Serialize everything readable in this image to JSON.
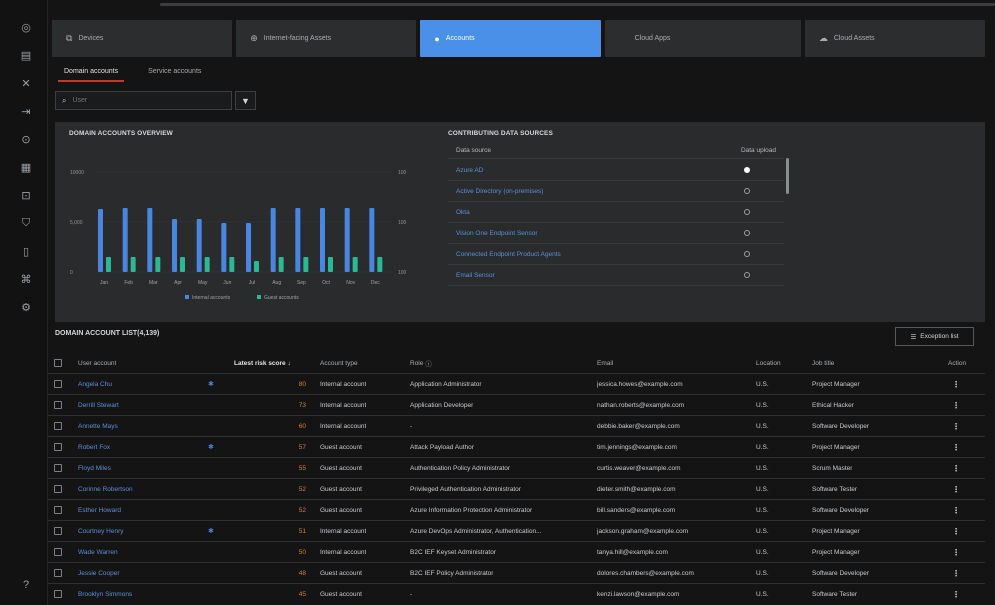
{
  "tabs": [
    {
      "label": "Devices",
      "icon": "device-icon"
    },
    {
      "label": "Internet-facing Assets",
      "icon": "globe-icon"
    },
    {
      "label": "Accounts",
      "icon": "user-icon",
      "active": true
    },
    {
      "label": "Cloud Apps",
      "icon": ""
    },
    {
      "label": "Cloud Assets",
      "icon": "cloud-icon"
    }
  ],
  "subtabs": [
    "Domain accounts",
    "Service accounts"
  ],
  "search": {
    "placeholder": "User"
  },
  "overview": {
    "title": "DOMAIN ACCOUNTS OVERVIEW",
    "legend": [
      "Internal accounts",
      "Guest accounts"
    ],
    "colors": {
      "internal": "#4a86e0",
      "guest": "#2bb894"
    }
  },
  "chart_data": {
    "type": "bar",
    "categories": [
      "Jan",
      "Feb",
      "Mar",
      "Apr",
      "May",
      "Jun",
      "Jul",
      "Aug",
      "Sep",
      "Oct",
      "Nov",
      "Dec"
    ],
    "yleft_ticks": [
      "10000",
      "5,000",
      "0"
    ],
    "yright_ticks": [
      "100",
      "100",
      "100"
    ],
    "ylim": [
      0,
      10000
    ],
    "series": [
      {
        "name": "Internal accounts",
        "values": [
          6300,
          6400,
          6400,
          5300,
          5300,
          4900,
          4900,
          6400,
          6400,
          6400,
          6400,
          6400
        ]
      },
      {
        "name": "Guest accounts",
        "values": [
          1500,
          1500,
          1500,
          1500,
          1500,
          1500,
          1100,
          1500,
          1500,
          1500,
          1500,
          1500
        ]
      }
    ]
  },
  "data_sources": {
    "title": "CONTRIBUTING DATA SOURCES",
    "col_source": "Data source",
    "col_onboard": "Data upload",
    "rows": [
      {
        "name": "Azure AD",
        "selected": true
      },
      {
        "name": "Active Directory (on-premises)",
        "selected": false
      },
      {
        "name": "Okta",
        "selected": false
      },
      {
        "name": "Vision One Endpoint Sensor",
        "selected": false
      },
      {
        "name": "Connected Endpoint Product Agents",
        "selected": false
      },
      {
        "name": "Email Sensor",
        "selected": false
      }
    ]
  },
  "list": {
    "title": "DOMAIN ACCOUNT LIST(4,139)",
    "exception_label": "Exception list",
    "headers": [
      "User account",
      "Latest risk score",
      "Account type",
      "Role",
      "Email",
      "Location",
      "Job title",
      "Action"
    ],
    "rows": [
      {
        "user": "Angela Chu",
        "star": true,
        "score": "80",
        "type": "Internal account",
        "role": "Application Administrator",
        "email": "jessica.howes@example.com",
        "loc": "U.S.",
        "job": "Project Manager"
      },
      {
        "user": "Derrill Stewart",
        "star": false,
        "score": "73",
        "type": "Internal account",
        "role": "Application Developer",
        "email": "nathan.roberts@example.com",
        "loc": "U.S.",
        "job": "Ethical Hacker"
      },
      {
        "user": "Annette Mays",
        "star": false,
        "score": "60",
        "type": "Internal account",
        "role": "-",
        "email": "debbie.baker@example.com",
        "loc": "U.S.",
        "job": "Software Developer"
      },
      {
        "user": "Robert Fox",
        "star": true,
        "score": "57",
        "type": "Guest account",
        "role": "Attack Payload Author",
        "email": "tim.jennings@example.com",
        "loc": "U.S.",
        "job": "Project Manager"
      },
      {
        "user": "Floyd Miles",
        "star": false,
        "score": "55",
        "type": "Guest account",
        "role": "Authentication Policy Administrator",
        "email": "curtis.weaver@example.com",
        "loc": "U.S.",
        "job": "Scrum Master"
      },
      {
        "user": "Corinne Robertson",
        "star": false,
        "score": "52",
        "type": "Guest account",
        "role": "Privileged Authentication Administrator",
        "email": "dieter.smith@example.com",
        "loc": "U.S.",
        "job": "Software Tester"
      },
      {
        "user": "Esther Howard",
        "star": false,
        "score": "52",
        "type": "Guest account",
        "role": "Azure Information Protection Administrator",
        "email": "bill.sanders@example.com",
        "loc": "U.S.",
        "job": "Software Developer"
      },
      {
        "user": "Courtney Henry",
        "star": true,
        "score": "51",
        "type": "Internal account",
        "role": "Azure DevOps Administrator, Authentication...",
        "email": "jackson.graham@example.com",
        "loc": "U.S.",
        "job": "Project Manager"
      },
      {
        "user": "Wade Warren",
        "star": false,
        "score": "50",
        "type": "Internal account",
        "role": "B2C IEF Keyset Administrator",
        "email": "tanya.hill@example.com",
        "loc": "U.S.",
        "job": "Project Manager"
      },
      {
        "user": "Jessie Cooper",
        "star": false,
        "score": "48",
        "type": "Guest account",
        "role": "B2C IEF Policy Administrator",
        "email": "dolores.chambers@example.com",
        "loc": "U.S.",
        "job": "Software Developer"
      },
      {
        "user": "Brooklyn Simmons",
        "star": false,
        "score": "45",
        "type": "Guest account",
        "role": "-",
        "email": "kenzi.lawson@example.com",
        "loc": "U.S.",
        "job": "Software Tester"
      }
    ]
  }
}
